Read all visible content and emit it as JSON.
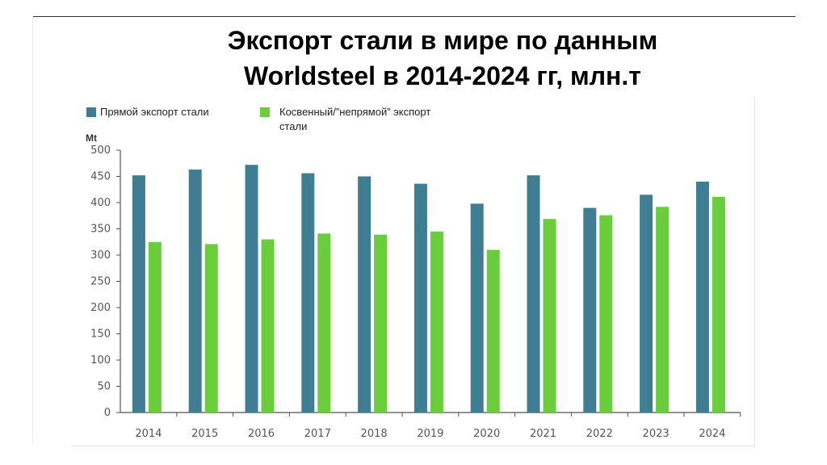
{
  "title_lines": [
    "Экспорт стали в мире по данным",
    "Worldsteel в 2014-2024 гг, млн.т"
  ],
  "chart_data": {
    "type": "bar",
    "title": "Экспорт стали в мире по данным Worldsteel в 2014-2024 гг, млн.т",
    "ylabel": "Mt",
    "xlabel": "",
    "ylim": [
      0,
      500
    ],
    "yticks": [
      0,
      50,
      100,
      150,
      200,
      250,
      300,
      350,
      400,
      450,
      500
    ],
    "grid": false,
    "legend_position": "top-left",
    "categories": [
      "2014",
      "2015",
      "2016",
      "2017",
      "2018",
      "2019",
      "2020",
      "2021",
      "2022",
      "2023",
      "2024"
    ],
    "series": [
      {
        "name": "Прямой экспорт стали",
        "color": "#3f7d93",
        "values": [
          452,
          463,
          472,
          456,
          450,
          436,
          398,
          452,
          390,
          415,
          440
        ]
      },
      {
        "name": "Косвенный/”непрямой” экспорт стали",
        "color": "#6acd3c",
        "values": [
          325,
          321,
          330,
          341,
          339,
          345,
          310,
          369,
          376,
          392,
          411
        ]
      }
    ]
  }
}
